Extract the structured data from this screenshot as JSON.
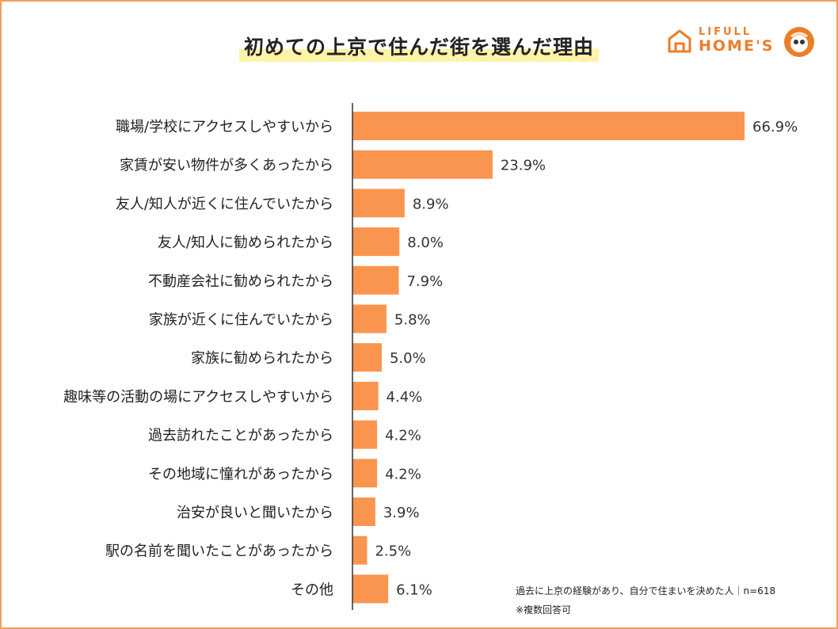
{
  "title": "初めての上京で住んだ街を選んだ理由",
  "brand": {
    "name_top": "LIFULL",
    "name_bottom": "HOME'S",
    "color": "#ea7e2b"
  },
  "chart_data": {
    "type": "bar",
    "orientation": "horizontal",
    "categories": [
      "職場/学校にアクセスしやすいから",
      "家賃が安い物件が多くあったから",
      "友人/知人が近くに住んでいたから",
      "友人/知人に勧められたから",
      "不動産会社に勧められたから",
      "家族が近くに住んでいたから",
      "家族に勧められたから",
      "趣味等の活動の場にアクセスしやすいから",
      "過去訪れたことがあったから",
      "その地域に憧れがあったから",
      "治安が良いと聞いたから",
      "駅の名前を聞いたことがあったから",
      "その他"
    ],
    "values": [
      66.9,
      23.9,
      8.9,
      8.0,
      7.9,
      5.8,
      5.0,
      4.4,
      4.2,
      4.2,
      3.9,
      2.5,
      6.1
    ],
    "value_labels": [
      "66.9%",
      "23.9%",
      "8.9%",
      "8.0%",
      "7.9%",
      "5.8%",
      "5.0%",
      "4.4%",
      "4.2%",
      "4.2%",
      "3.9%",
      "2.5%",
      "6.1%"
    ],
    "bar_color": "#fa9550",
    "axis_color": "#333333",
    "grid": false
  },
  "notes": {
    "base": "過去に上京の経験があり、自分で住まいを決めた人｜n=618",
    "multi": "※複数回答可"
  }
}
